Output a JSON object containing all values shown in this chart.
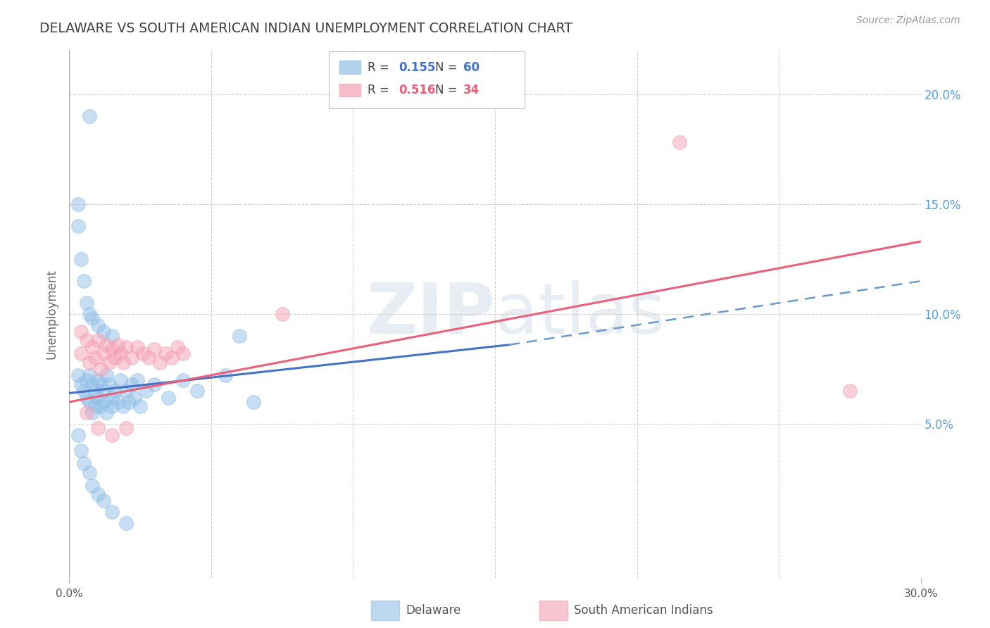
{
  "title": "DELAWARE VS SOUTH AMERICAN INDIAN UNEMPLOYMENT CORRELATION CHART",
  "source": "Source: ZipAtlas.com",
  "ylabel": "Unemployment",
  "xlim": [
    0.0,
    0.3
  ],
  "ylim": [
    -0.02,
    0.22
  ],
  "watermark_zip": "ZIP",
  "watermark_atlas": "atlas",
  "delaware_color": "#92C0E8",
  "south_american_color": "#F4A0B5",
  "delaware_edge": "#6699CC",
  "south_american_edge": "#E07090",
  "blue_line_color": "#4472C4",
  "pink_line_color": "#E8607A",
  "dashed_line_color": "#6699CC",
  "delaware_R": "0.155",
  "delaware_N": "60",
  "south_american_R": "0.516",
  "south_american_N": "34",
  "delaware_scatter": [
    [
      0.003,
      0.072
    ],
    [
      0.004,
      0.068
    ],
    [
      0.005,
      0.065
    ],
    [
      0.006,
      0.07
    ],
    [
      0.006,
      0.062
    ],
    [
      0.007,
      0.072
    ],
    [
      0.007,
      0.06
    ],
    [
      0.008,
      0.068
    ],
    [
      0.008,
      0.055
    ],
    [
      0.009,
      0.065
    ],
    [
      0.009,
      0.058
    ],
    [
      0.01,
      0.07
    ],
    [
      0.01,
      0.062
    ],
    [
      0.011,
      0.068
    ],
    [
      0.011,
      0.058
    ],
    [
      0.012,
      0.065
    ],
    [
      0.012,
      0.06
    ],
    [
      0.013,
      0.072
    ],
    [
      0.013,
      0.055
    ],
    [
      0.014,
      0.068
    ],
    [
      0.015,
      0.062
    ],
    [
      0.015,
      0.058
    ],
    [
      0.016,
      0.065
    ],
    [
      0.017,
      0.06
    ],
    [
      0.018,
      0.07
    ],
    [
      0.019,
      0.058
    ],
    [
      0.02,
      0.065
    ],
    [
      0.021,
      0.06
    ],
    [
      0.022,
      0.068
    ],
    [
      0.023,
      0.062
    ],
    [
      0.024,
      0.07
    ],
    [
      0.025,
      0.058
    ],
    [
      0.027,
      0.065
    ],
    [
      0.03,
      0.068
    ],
    [
      0.035,
      0.062
    ],
    [
      0.04,
      0.07
    ],
    [
      0.045,
      0.065
    ],
    [
      0.055,
      0.072
    ],
    [
      0.065,
      0.06
    ],
    [
      0.003,
      0.14
    ],
    [
      0.004,
      0.125
    ],
    [
      0.005,
      0.115
    ],
    [
      0.006,
      0.105
    ],
    [
      0.007,
      0.1
    ],
    [
      0.008,
      0.098
    ],
    [
      0.01,
      0.095
    ],
    [
      0.012,
      0.092
    ],
    [
      0.015,
      0.09
    ],
    [
      0.003,
      0.15
    ],
    [
      0.007,
      0.19
    ],
    [
      0.06,
      0.09
    ],
    [
      0.003,
      0.045
    ],
    [
      0.004,
      0.038
    ],
    [
      0.005,
      0.032
    ],
    [
      0.007,
      0.028
    ],
    [
      0.008,
      0.022
    ],
    [
      0.01,
      0.018
    ],
    [
      0.012,
      0.015
    ],
    [
      0.015,
      0.01
    ],
    [
      0.02,
      0.005
    ]
  ],
  "south_american_scatter": [
    [
      0.004,
      0.082
    ],
    [
      0.006,
      0.088
    ],
    [
      0.007,
      0.078
    ],
    [
      0.008,
      0.085
    ],
    [
      0.009,
      0.08
    ],
    [
      0.01,
      0.088
    ],
    [
      0.011,
      0.075
    ],
    [
      0.012,
      0.082
    ],
    [
      0.013,
      0.086
    ],
    [
      0.014,
      0.078
    ],
    [
      0.015,
      0.084
    ],
    [
      0.016,
      0.08
    ],
    [
      0.017,
      0.086
    ],
    [
      0.018,
      0.082
    ],
    [
      0.019,
      0.078
    ],
    [
      0.02,
      0.085
    ],
    [
      0.022,
      0.08
    ],
    [
      0.024,
      0.085
    ],
    [
      0.026,
      0.082
    ],
    [
      0.028,
      0.08
    ],
    [
      0.03,
      0.084
    ],
    [
      0.032,
      0.078
    ],
    [
      0.034,
      0.082
    ],
    [
      0.036,
      0.08
    ],
    [
      0.038,
      0.085
    ],
    [
      0.04,
      0.082
    ],
    [
      0.004,
      0.092
    ],
    [
      0.006,
      0.055
    ],
    [
      0.01,
      0.048
    ],
    [
      0.015,
      0.045
    ],
    [
      0.02,
      0.048
    ],
    [
      0.215,
      0.178
    ],
    [
      0.275,
      0.065
    ],
    [
      0.075,
      0.1
    ]
  ],
  "blue_line_x": [
    0.0,
    0.155
  ],
  "blue_line_y": [
    0.064,
    0.086
  ],
  "pink_line_x": [
    0.0,
    0.3
  ],
  "pink_line_y": [
    0.06,
    0.133
  ],
  "dashed_line_x": [
    0.155,
    0.3
  ],
  "dashed_line_y": [
    0.086,
    0.115
  ],
  "background_color": "#ffffff",
  "grid_color": "#d0d0d0",
  "title_color": "#404040",
  "axis_label_color": "#666666",
  "right_tick_color": "#5B9BD5",
  "legend_box_color": "#e8e8e8",
  "legend_border_color": "#cccccc"
}
